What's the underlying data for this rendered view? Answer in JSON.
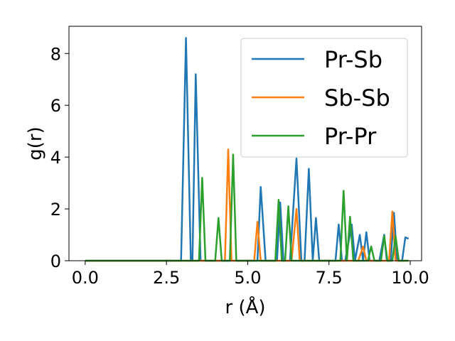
{
  "chart_data": {
    "type": "line",
    "xlabel": "r (Å)",
    "ylabel": "g(r)",
    "xlim": [
      -0.5,
      10.35
    ],
    "ylim": [
      0,
      9.05
    ],
    "xticks": [
      0.0,
      2.5,
      5.0,
      7.5,
      10.0
    ],
    "xtick_labels": [
      "0.0",
      "2.5",
      "5.0",
      "7.5",
      "10.0"
    ],
    "yticks": [
      0,
      2,
      4,
      6,
      8
    ],
    "ytick_labels": [
      "0",
      "2",
      "4",
      "6",
      "8"
    ],
    "grid": false,
    "legend_position": "top-right",
    "series": [
      {
        "name": "Pr-Sb",
        "color": "#1f77b4",
        "x": [
          0.0,
          2.95,
          3.1,
          3.25,
          3.3,
          3.4,
          3.55,
          5.3,
          5.4,
          5.55,
          5.9,
          6.0,
          6.1,
          6.3,
          6.5,
          6.65,
          6.75,
          6.88,
          7.0,
          7.1,
          7.2,
          7.7,
          7.8,
          7.9,
          8.0,
          8.2,
          8.3,
          8.45,
          8.55,
          8.65,
          8.75,
          9.05,
          9.2,
          9.28,
          9.4,
          9.5,
          9.6,
          9.75,
          9.85,
          9.95
        ],
        "y": [
          0,
          0,
          8.6,
          0,
          0,
          7.2,
          0,
          0,
          2.85,
          0,
          0,
          2.25,
          0,
          0,
          3.95,
          0,
          0,
          3.55,
          0,
          1.65,
          0,
          0,
          1.4,
          0,
          0,
          1.4,
          0,
          1.0,
          0,
          1.1,
          0,
          0,
          1.0,
          0,
          0,
          1.85,
          0,
          0,
          0.9,
          0.85
        ]
      },
      {
        "name": "Sb-Sb",
        "color": "#ff7f0e",
        "x": [
          0.0,
          4.3,
          4.4,
          4.5,
          5.2,
          5.3,
          5.4,
          6.35,
          6.5,
          6.6,
          8.4,
          8.55,
          8.65,
          9.35,
          9.45,
          9.55,
          9.95
        ],
        "y": [
          0,
          0,
          4.3,
          0,
          0,
          1.5,
          0,
          0,
          2.0,
          0,
          0,
          0.55,
          0,
          0,
          1.9,
          0,
          0
        ]
      },
      {
        "name": "Pr-Pr",
        "color": "#2ca02c",
        "x": [
          0.0,
          3.5,
          3.6,
          3.7,
          4.0,
          4.1,
          4.2,
          4.45,
          4.55,
          4.65,
          5.85,
          5.95,
          6.05,
          6.15,
          6.25,
          6.35,
          7.85,
          7.95,
          8.05,
          8.15,
          8.25,
          8.7,
          8.8,
          8.9,
          9.1,
          9.2,
          9.3,
          9.45,
          9.55,
          9.65,
          9.95
        ],
        "y": [
          0,
          0,
          3.2,
          0,
          0,
          1.65,
          0,
          0,
          4.1,
          0,
          0,
          2.35,
          0,
          0,
          2.1,
          0,
          0,
          2.7,
          0,
          1.7,
          0,
          0,
          0.55,
          0,
          0,
          0.95,
          0,
          0,
          0.95,
          0,
          0
        ]
      }
    ]
  }
}
